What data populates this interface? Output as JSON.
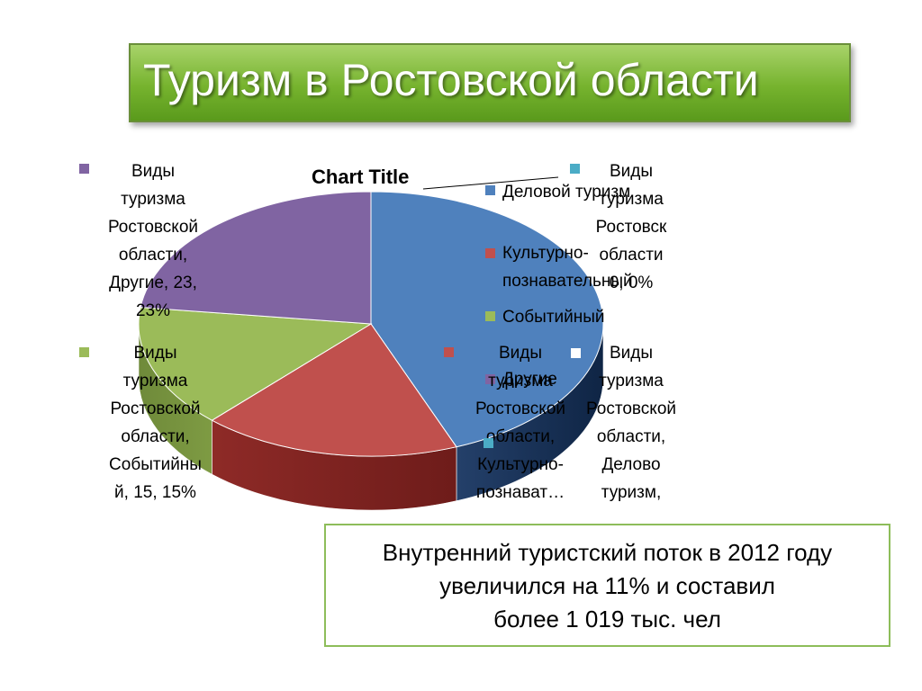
{
  "slide": {
    "title": "Туризм в Ростовской области",
    "info_text": "Внутренний туристский поток в 2012 году\nувеличился на 11% и составил\nболее 1 019 тыс. чел"
  },
  "chart_data": {
    "type": "pie",
    "title": "Chart Title",
    "style": "3d-pie",
    "legend_position": "right",
    "categories": [
      "Деловой туризм",
      "Культурно-познавательный",
      "Событийный",
      "Другие"
    ],
    "colors": [
      "#4f81bd",
      "#c0504d",
      "#9bbb59",
      "#8064a2"
    ],
    "values": [
      44,
      18,
      15,
      23
    ],
    "data_labels": {
      "delovoy": "Виды\nтуризма\nРостовской\nобласти,\nДелово\nтуризм,",
      "kultur": "Виды\nтуризма\nРостовской\nобласти,\nКультурно-\nпознават…",
      "sobyt": "Виды\nтуризма\nРостовской\nобласти,\nСобытийны\nй, 15, 15%",
      "drugie": "Виды\nтуризма\nРостовской\nобласти,\nДругие, 23,\n23%",
      "zero": "Виды\nтуризма\nРостовск\nобласти\n0, 0%"
    },
    "legend": [
      {
        "label": "Деловой туризм",
        "color": "#4f81bd"
      },
      {
        "label": "Культурно-\nпознавательный",
        "color": "#c0504d"
      },
      {
        "label": "Событийный",
        "color": "#9bbb59"
      },
      {
        "label": "Другие",
        "color": "#8064a2"
      }
    ],
    "extra_legend_color": "#4bacc6"
  }
}
